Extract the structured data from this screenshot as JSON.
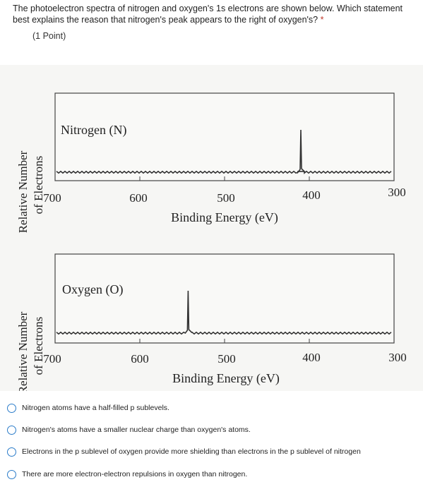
{
  "question": {
    "text": "The photoelectron spectra of nitrogen and oxygen's 1s electrons are shown below. Which statement best explains the reason that nitrogen's peak appears to the right of oxygen's?",
    "required_mark": "*",
    "points": "(1 Point)"
  },
  "figure": {
    "panels": [
      {
        "label": "Nitrogen (N)",
        "ylabel_line1": "Relative Number",
        "ylabel_line2": "of Electrons",
        "xlabel": "Binding Energy (eV)",
        "ticks": [
          "700",
          "600",
          "500",
          "400",
          "300"
        ]
      },
      {
        "label": "Oxygen (O)",
        "ylabel_line1": "Relative Number",
        "ylabel_line2": "of Electrons",
        "xlabel": "Binding Energy (eV)",
        "ticks": [
          "700",
          "600",
          "500",
          "400",
          "300"
        ]
      }
    ]
  },
  "chart_data": [
    {
      "type": "line",
      "series_label": "Nitrogen (N)",
      "x_axis_reversed": true,
      "xlim": [
        700,
        300
      ],
      "x_ticks": [
        700,
        600,
        500,
        400,
        300
      ],
      "xlabel": "Binding Energy (eV)",
      "ylabel": "Relative Number of Electrons",
      "peak_binding_energy_eV": 410
    },
    {
      "type": "line",
      "series_label": "Oxygen (O)",
      "x_axis_reversed": true,
      "xlim": [
        700,
        300
      ],
      "x_ticks": [
        700,
        600,
        500,
        400,
        300
      ],
      "xlabel": "Binding Energy (eV)",
      "ylabel": "Relative Number of Electrons",
      "peak_binding_energy_eV": 543
    }
  ],
  "options": [
    "Nitrogen atoms have a half-filled p sublevels.",
    "Nitrogen's atoms have a smaller nuclear charge than oxygen's atoms.",
    "Electrons in the p sublevel of oxygen provide more shielding than electrons in the p sublevel of nitrogen",
    "There are more electron-electron repulsions in oxygen than nitrogen."
  ]
}
